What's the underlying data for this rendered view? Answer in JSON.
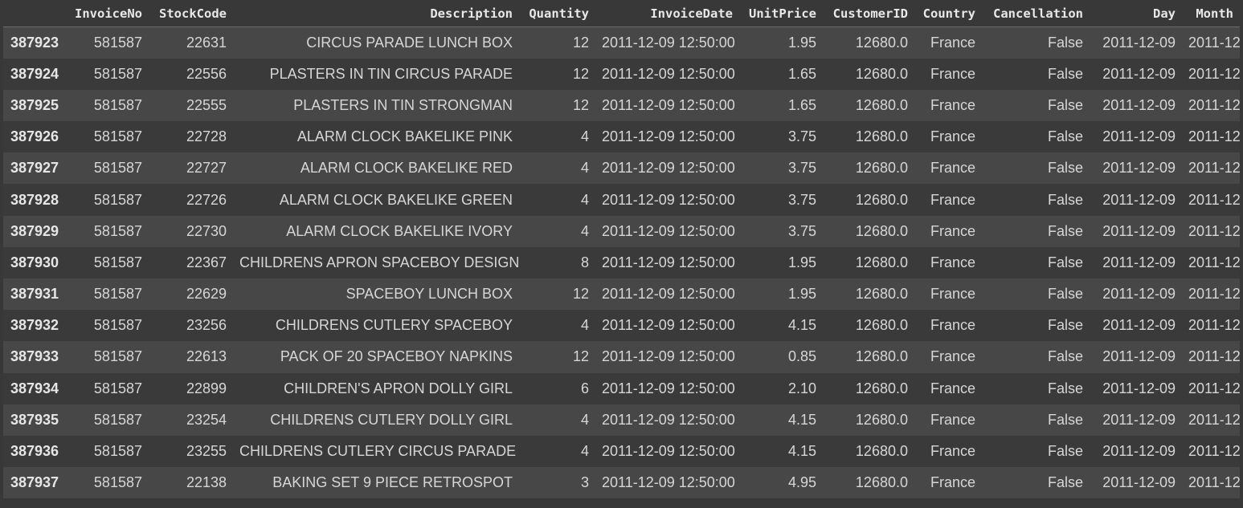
{
  "columns": [
    "",
    "InvoiceNo",
    "StockCode",
    "Description",
    "Quantity",
    "InvoiceDate",
    "UnitPrice",
    "CustomerID",
    "Country",
    "Cancellation",
    "Day",
    "Month"
  ],
  "rows": [
    [
      "387923",
      "581587",
      "22631",
      "CIRCUS PARADE LUNCH BOX",
      "12",
      "2011-12-09 12:50:00",
      "1.95",
      "12680.0",
      "France",
      "False",
      "2011-12-09",
      "2011-12"
    ],
    [
      "387924",
      "581587",
      "22556",
      "PLASTERS IN TIN CIRCUS PARADE",
      "12",
      "2011-12-09 12:50:00",
      "1.65",
      "12680.0",
      "France",
      "False",
      "2011-12-09",
      "2011-12"
    ],
    [
      "387925",
      "581587",
      "22555",
      "PLASTERS IN TIN STRONGMAN",
      "12",
      "2011-12-09 12:50:00",
      "1.65",
      "12680.0",
      "France",
      "False",
      "2011-12-09",
      "2011-12"
    ],
    [
      "387926",
      "581587",
      "22728",
      "ALARM CLOCK BAKELIKE PINK",
      "4",
      "2011-12-09 12:50:00",
      "3.75",
      "12680.0",
      "France",
      "False",
      "2011-12-09",
      "2011-12"
    ],
    [
      "387927",
      "581587",
      "22727",
      "ALARM CLOCK BAKELIKE RED",
      "4",
      "2011-12-09 12:50:00",
      "3.75",
      "12680.0",
      "France",
      "False",
      "2011-12-09",
      "2011-12"
    ],
    [
      "387928",
      "581587",
      "22726",
      "ALARM CLOCK BAKELIKE GREEN",
      "4",
      "2011-12-09 12:50:00",
      "3.75",
      "12680.0",
      "France",
      "False",
      "2011-12-09",
      "2011-12"
    ],
    [
      "387929",
      "581587",
      "22730",
      "ALARM CLOCK BAKELIKE IVORY",
      "4",
      "2011-12-09 12:50:00",
      "3.75",
      "12680.0",
      "France",
      "False",
      "2011-12-09",
      "2011-12"
    ],
    [
      "387930",
      "581587",
      "22367",
      "CHILDRENS APRON SPACEBOY DESIGN",
      "8",
      "2011-12-09 12:50:00",
      "1.95",
      "12680.0",
      "France",
      "False",
      "2011-12-09",
      "2011-12"
    ],
    [
      "387931",
      "581587",
      "22629",
      "SPACEBOY LUNCH BOX",
      "12",
      "2011-12-09 12:50:00",
      "1.95",
      "12680.0",
      "France",
      "False",
      "2011-12-09",
      "2011-12"
    ],
    [
      "387932",
      "581587",
      "23256",
      "CHILDRENS CUTLERY SPACEBOY",
      "4",
      "2011-12-09 12:50:00",
      "4.15",
      "12680.0",
      "France",
      "False",
      "2011-12-09",
      "2011-12"
    ],
    [
      "387933",
      "581587",
      "22613",
      "PACK OF 20 SPACEBOY NAPKINS",
      "12",
      "2011-12-09 12:50:00",
      "0.85",
      "12680.0",
      "France",
      "False",
      "2011-12-09",
      "2011-12"
    ],
    [
      "387934",
      "581587",
      "22899",
      "CHILDREN'S APRON DOLLY GIRL",
      "6",
      "2011-12-09 12:50:00",
      "2.10",
      "12680.0",
      "France",
      "False",
      "2011-12-09",
      "2011-12"
    ],
    [
      "387935",
      "581587",
      "23254",
      "CHILDRENS CUTLERY DOLLY GIRL",
      "4",
      "2011-12-09 12:50:00",
      "4.15",
      "12680.0",
      "France",
      "False",
      "2011-12-09",
      "2011-12"
    ],
    [
      "387936",
      "581587",
      "23255",
      "CHILDRENS CUTLERY CIRCUS PARADE",
      "4",
      "2011-12-09 12:50:00",
      "4.15",
      "12680.0",
      "France",
      "False",
      "2011-12-09",
      "2011-12"
    ],
    [
      "387937",
      "581587",
      "22138",
      "BAKING SET 9 PIECE RETROSPOT",
      "3",
      "2011-12-09 12:50:00",
      "4.95",
      "12680.0",
      "France",
      "False",
      "2011-12-09",
      "2011-12"
    ]
  ],
  "colors": {
    "background": "#383838",
    "row_odd": "#474747",
    "row_even": "#3a3a3a",
    "text": "#d6d6d6",
    "header_rule": "#6c6c6c"
  }
}
